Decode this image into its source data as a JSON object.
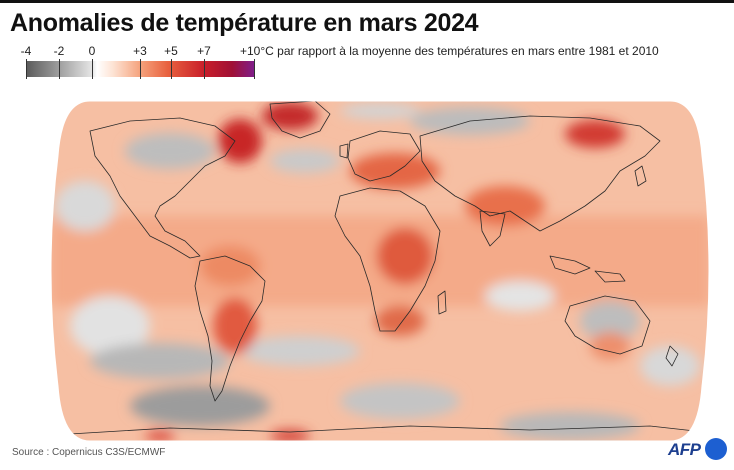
{
  "title": "Anomalies de température en mars 2024",
  "legend": {
    "ticks": [
      "-4",
      "-2",
      "0",
      "+3",
      "+5",
      "+7"
    ],
    "note": "+10°C par rapport à la moyenne des températures en mars entre 1981 et 2010",
    "colors": {
      "cold_dark": "#5a5a5a",
      "cold_light": "#dcdcdc",
      "neutral": "#ffffff",
      "warm_light": "#f7c9b0",
      "warm_mid": "#ee8a63",
      "warm_strong": "#d43a30",
      "warm_extreme": "#a01025",
      "max": "#7e1e8e"
    }
  },
  "map": {
    "description_name": "world-temperature-anomaly-map",
    "ocean_base_color": "#f5b79a",
    "land_outline_color": "#2a2a2a"
  },
  "source": "Source : Copernicus C3S/ECMWF",
  "brand": {
    "text": "AFP",
    "color": "#1d3f8f",
    "dot_color": "#1d5fd1"
  }
}
